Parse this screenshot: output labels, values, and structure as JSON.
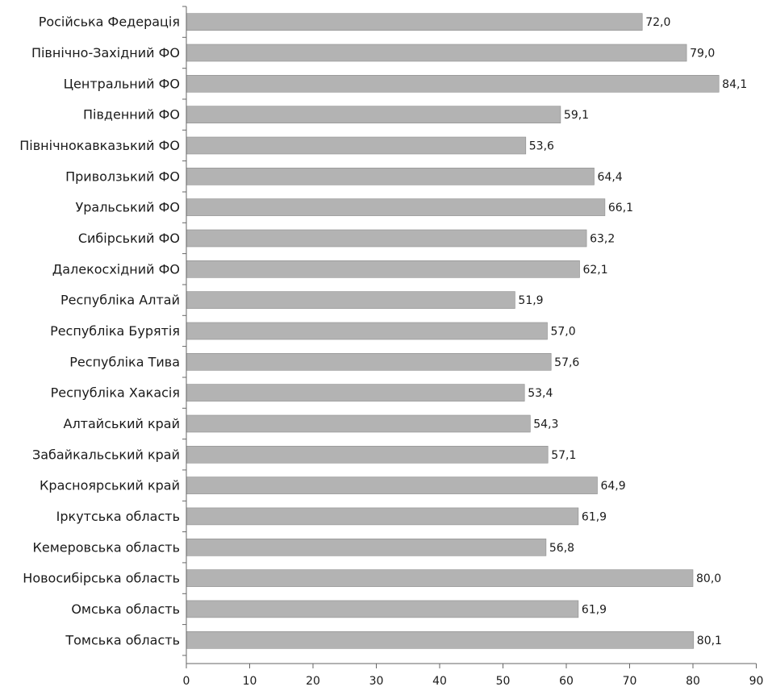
{
  "chart_data": {
    "type": "bar",
    "orientation": "horizontal",
    "categories": [
      "Російська Федерація",
      "Північно-Західний ФО",
      "Центральний ФО",
      "Південний ФО",
      "Північнокавказький ФО",
      "Приволзький ФО",
      "Уральський ФО",
      "Сибірський ФО",
      "Далекосхідний ФО",
      "Республіка Алтай",
      "Республіка Бурятія",
      "Республіка Тива",
      "Республіка Хакасія",
      "Алтайський край",
      "Забайкальський край",
      "Красноярський край",
      "Іркутська область",
      "Кемеровська область",
      "Новосибірська область",
      "Омська область",
      "Томська область"
    ],
    "values": [
      72.0,
      79.0,
      84.1,
      59.1,
      53.6,
      64.4,
      66.1,
      63.2,
      62.1,
      51.9,
      57.0,
      57.6,
      53.4,
      54.3,
      57.1,
      64.9,
      61.9,
      56.8,
      80.0,
      61.9,
      80.1
    ],
    "value_labels": [
      "72,0",
      "79,0",
      "84,1",
      "59,1",
      "53,6",
      "64,4",
      "66,1",
      "63,2",
      "62,1",
      "51,9",
      "57,0",
      "57,6",
      "53,4",
      "54,3",
      "57,1",
      "64,9",
      "61,9",
      "56,8",
      "80,0",
      "61,9",
      "80,1"
    ],
    "xlim": [
      0,
      90
    ],
    "x_ticks": [
      0,
      10,
      20,
      30,
      40,
      50,
      60,
      70,
      80,
      90
    ],
    "x_tick_labels": [
      "0",
      "10",
      "20",
      "30",
      "40",
      "50",
      "60",
      "70",
      "80",
      "90"
    ],
    "bar_color": "#b3b3b3",
    "bar_stroke_color": "#8c8c8c",
    "axis_color": "#666666",
    "grid": false,
    "legend": "none",
    "title": "",
    "xlabel": "",
    "ylabel": ""
  }
}
